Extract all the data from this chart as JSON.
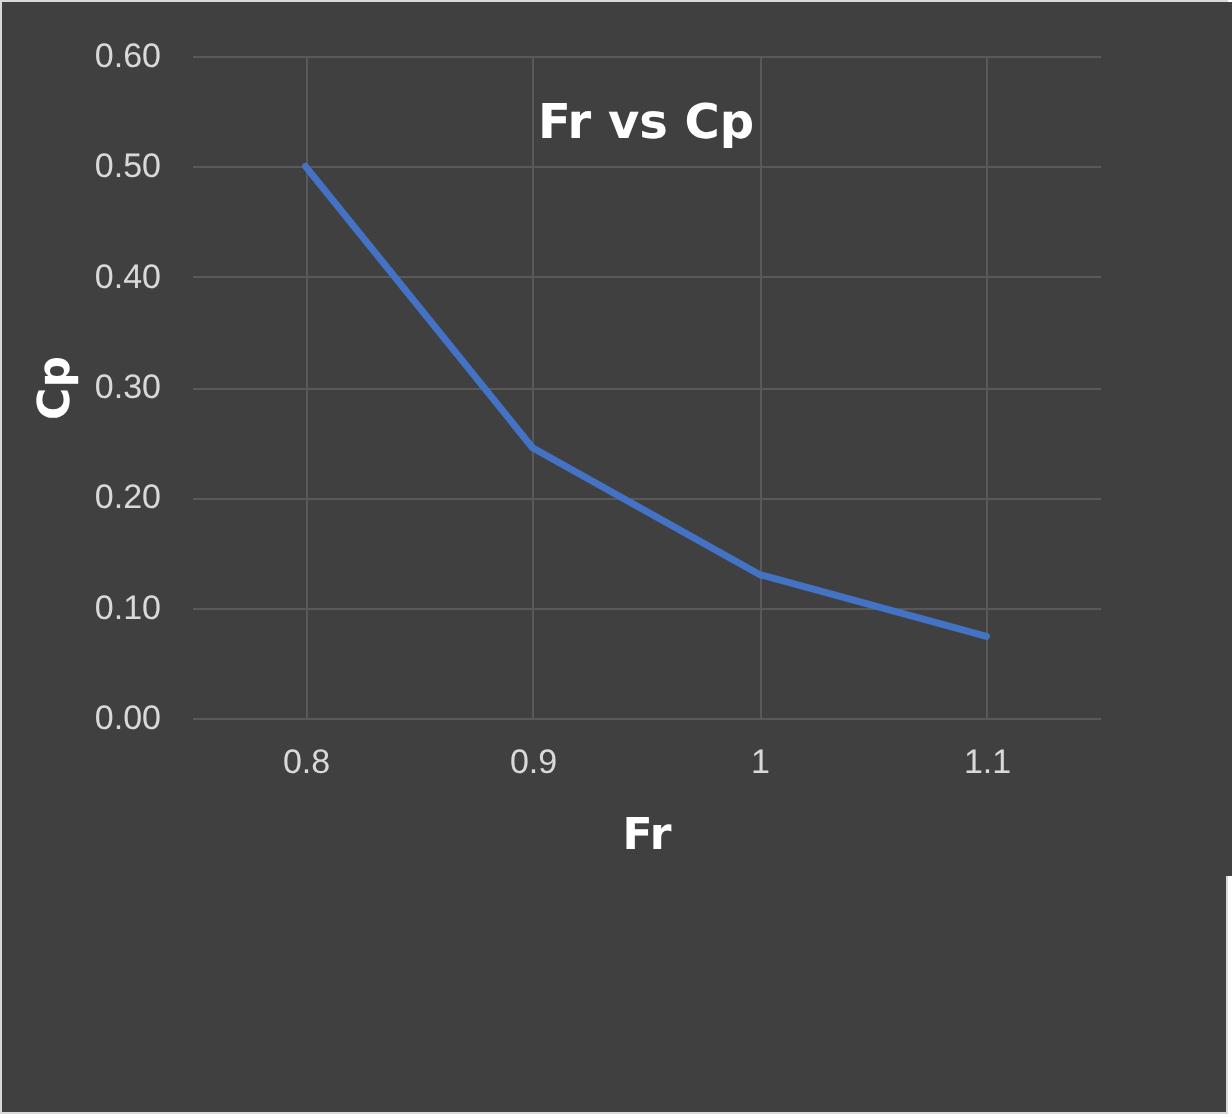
{
  "chart_data": {
    "type": "line",
    "title": "Fr vs Cp",
    "xlabel": "Fr",
    "ylabel": "Cp",
    "categories": [
      "0.8",
      "0.9",
      "1",
      "1.1"
    ],
    "series": [
      {
        "color": "#4472c4",
        "values": [
          0.5,
          0.245,
          0.13,
          0.074
        ]
      }
    ],
    "ylim": [
      0,
      0.6
    ],
    "yticks": [
      {
        "value": 0,
        "label": "0.00"
      },
      {
        "value": 0.1,
        "label": "0.10"
      },
      {
        "value": 0.2,
        "label": "0.20"
      },
      {
        "value": 0.3,
        "label": "0.30"
      },
      {
        "value": 0.4,
        "label": "0.40"
      },
      {
        "value": 0.5,
        "label": "0.50"
      },
      {
        "value": 0.6,
        "label": "0.60"
      }
    ],
    "grid": true,
    "marker": "none",
    "line_style": "solid"
  }
}
